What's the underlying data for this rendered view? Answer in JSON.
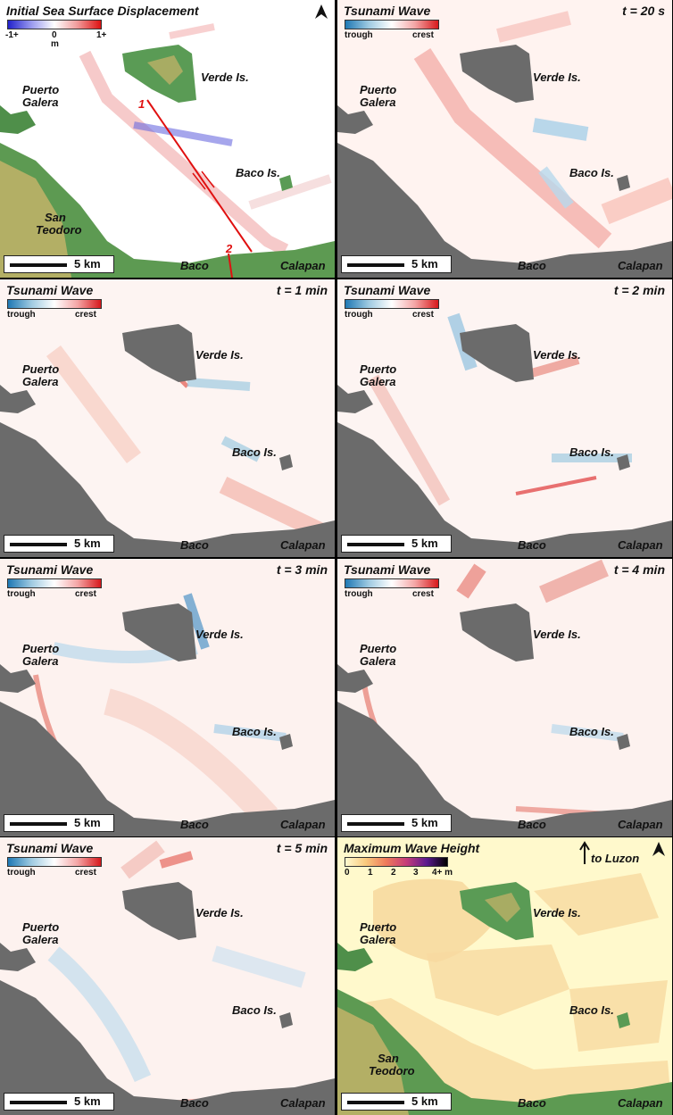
{
  "panels": {
    "p1": {
      "title": "Initial Sea Surface Displacement",
      "time": "",
      "cb_min": "-1+",
      "cb_mid": "0",
      "cb_unit": "m",
      "cb_max": "1+",
      "fault_1": "1",
      "fault_2": "2"
    },
    "p2": {
      "title": "Tsunami Wave",
      "time": "t = 20 s",
      "cb_min": "trough",
      "cb_max": "crest"
    },
    "p3": {
      "title": "Tsunami Wave",
      "time": "t = 1 min",
      "cb_min": "trough",
      "cb_max": "crest"
    },
    "p4": {
      "title": "Tsunami Wave",
      "time": "t = 2 min",
      "cb_min": "trough",
      "cb_max": "crest"
    },
    "p5": {
      "title": "Tsunami Wave",
      "time": "t = 3 min",
      "cb_min": "trough",
      "cb_max": "crest"
    },
    "p6": {
      "title": "Tsunami Wave",
      "time": "t = 4 min",
      "cb_min": "trough",
      "cb_max": "crest"
    },
    "p7": {
      "title": "Tsunami Wave",
      "time": "t = 5 min",
      "cb_min": "trough",
      "cb_max": "crest"
    },
    "p8": {
      "title": "Maximum Wave Height",
      "time": "",
      "cb_ticks": [
        "0",
        "1",
        "2",
        "3",
        "4+ m"
      ],
      "luzon": "to Luzon"
    }
  },
  "places": {
    "verde": "Verde Is.",
    "puerto": "Puerto",
    "galera": "Galera",
    "baco_is": "Baco Is.",
    "san": "San",
    "teodoro": "Teodoro",
    "baco": "Baco",
    "calapan": "Calapan"
  },
  "scale": "5 km",
  "colors": {
    "land_gray": "#6b6b6b",
    "land_green": "#4f8f4a",
    "crest": "#e34a4a",
    "trough": "#3c8fd0",
    "max_light": "#fff9cc",
    "max_orange": "#f7d9a0",
    "fault": "#e01010"
  }
}
